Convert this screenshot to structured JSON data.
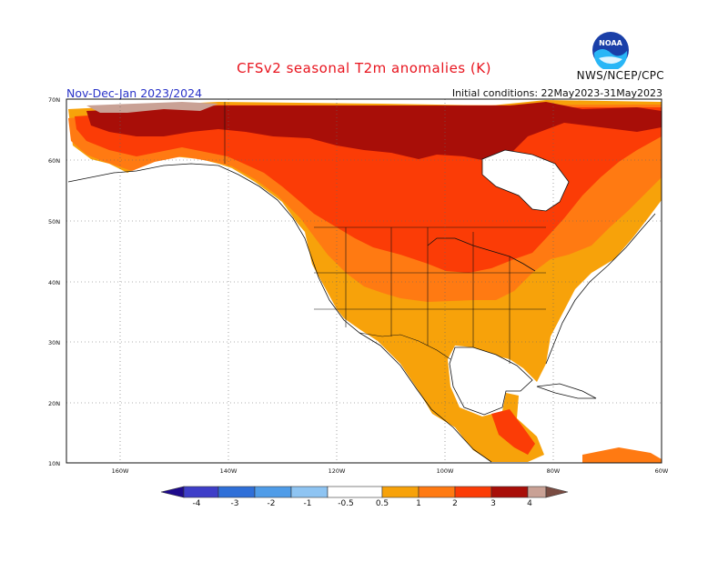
{
  "header": {
    "title": "CFSv2 seasonal T2m anomalies (K)",
    "season": "Nov-Dec-Jan 2023/2024",
    "initial_conditions": "Initial conditions: 22May2023-31May2023",
    "agency": "NWS/NCEP/CPC",
    "logo_text": "NOAA"
  },
  "map": {
    "lat_labels": [
      "70N",
      "60N",
      "50N",
      "40N",
      "30N",
      "20N",
      "10N"
    ],
    "lon_labels": [
      "160W",
      "140W",
      "120W",
      "100W",
      "80W",
      "60W"
    ]
  },
  "legend": {
    "labels": [
      "-4",
      "-3",
      "-2",
      "-1",
      "-0.5",
      "0.5",
      "1",
      "2",
      "3",
      "4"
    ],
    "colors": {
      "neg4": "#1e0a8c",
      "neg3": "#3e3ec8",
      "neg2": "#2f6fd8",
      "neg1": "#4f9ce8",
      "neg05": "#8ec4f2",
      "white": "#ffffff",
      "pos05": "#f7a20a",
      "pos1": "#ff7a12",
      "pos2": "#fb3c06",
      "pos3": "#a80e08",
      "pos4": "#c9a195",
      "pos5": "#7a4c42"
    }
  }
}
